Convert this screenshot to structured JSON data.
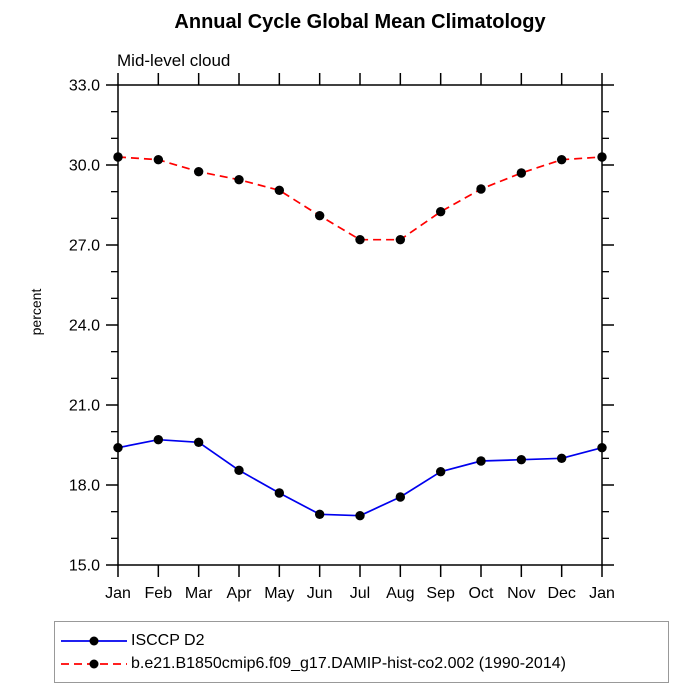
{
  "page": {
    "background": "#ffffff",
    "text_color": "#000000",
    "legend_border_color": "#999999"
  },
  "chart_data": {
    "type": "line",
    "title": "Annual Cycle Global Mean Climatology",
    "subtitle": "Mid-level cloud",
    "xlabel": "",
    "ylabel": "percent",
    "categories": [
      "Jan",
      "Feb",
      "Mar",
      "Apr",
      "May",
      "Jun",
      "Jul",
      "Aug",
      "Sep",
      "Oct",
      "Nov",
      "Dec",
      "Jan"
    ],
    "ylim": [
      15.0,
      33.0
    ],
    "ytick_values": [
      15,
      18,
      21,
      24,
      27,
      30,
      33
    ],
    "ytick_labels": [
      "15.0",
      "18.0",
      "21.0",
      "24.0",
      "27.0",
      "30.0",
      "33.0"
    ],
    "y_minor_tick_step": 1,
    "grid": false,
    "legend_position": "bottom-left",
    "marker": {
      "shape": "circle",
      "color": "#000000"
    },
    "series": [
      {
        "name": "ISCCP D2",
        "color": "#0000ee",
        "style": "solid",
        "values": [
          19.4,
          19.7,
          19.6,
          18.55,
          17.7,
          16.9,
          16.85,
          17.55,
          18.5,
          18.9,
          18.95,
          19.0,
          19.4
        ]
      },
      {
        "name": "b.e21.B1850cmip6.f09_g17.DAMIP-hist-co2.002 (1990-2014)",
        "color": "#ff0000",
        "style": "dashed",
        "values": [
          30.3,
          30.2,
          29.75,
          29.45,
          29.05,
          28.1,
          27.2,
          27.2,
          28.25,
          29.1,
          29.7,
          30.2,
          30.3
        ]
      }
    ]
  }
}
